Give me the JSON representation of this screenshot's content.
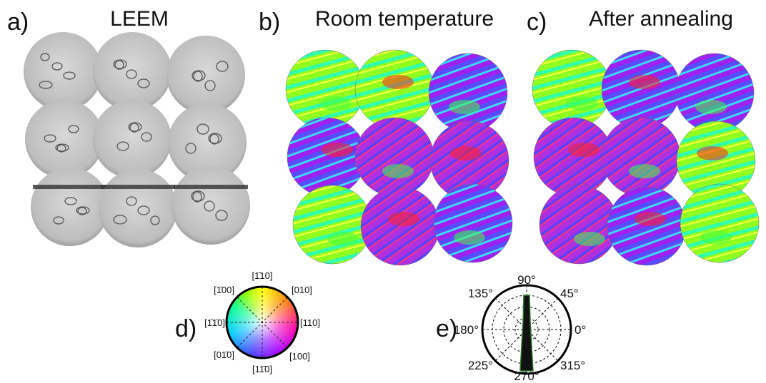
{
  "panels": [
    {
      "label": "a)",
      "title": "LEEM"
    },
    {
      "label": "b)",
      "title": "Room temperature"
    },
    {
      "label": "c)",
      "title": "After annealing"
    },
    {
      "label": "d)"
    },
    {
      "label": "e)"
    }
  ],
  "color_wheel": {
    "labels": [
      "[1̄10]",
      "[010]",
      "[110]",
      "[100]",
      "[11̄0]",
      "[01̄0]",
      "[1̄1̄0]",
      "[1̄00]"
    ]
  },
  "polar_plot": {
    "angle_labels": [
      "90°",
      "45°",
      "0°",
      "315°",
      "270°",
      "225°",
      "180°",
      "135°"
    ]
  }
}
